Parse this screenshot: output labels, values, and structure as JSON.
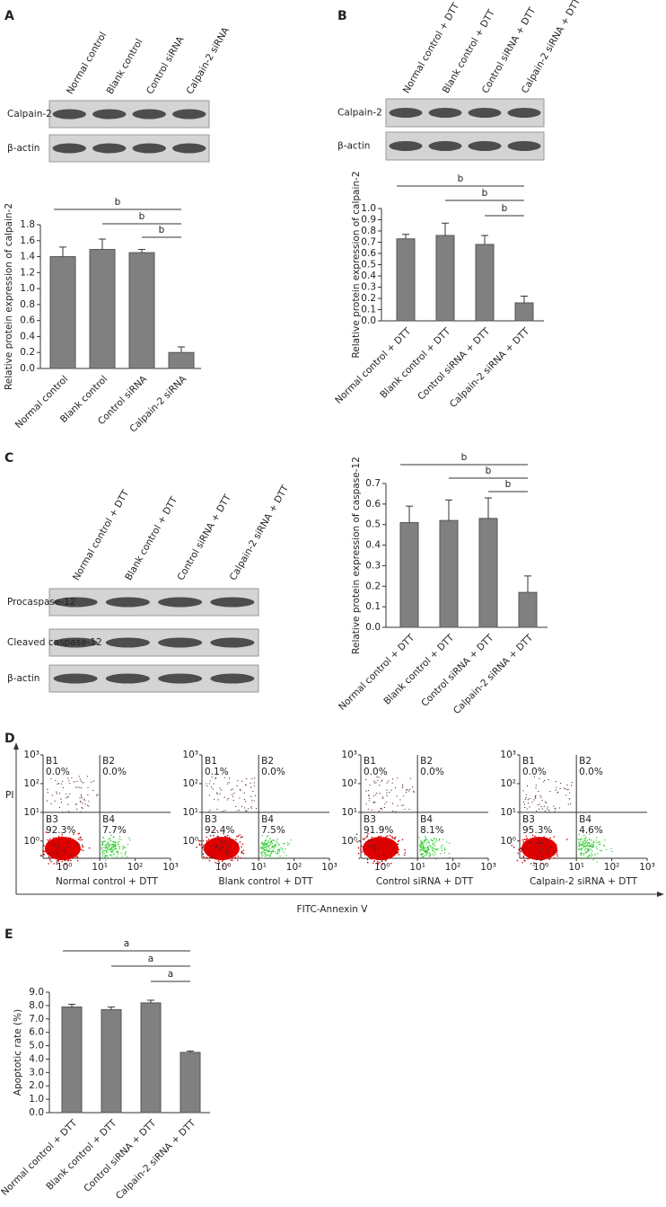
{
  "chart_data": [
    {
      "type": "bar",
      "panel": "A",
      "ylabel": "Relative protein expression of calpain-2",
      "categories": [
        "Normal control",
        "Blank control",
        "Control siRNA",
        "Calpain-2 siRNA"
      ],
      "values": [
        1.4,
        1.49,
        1.45,
        0.2
      ],
      "errors": [
        0.12,
        0.13,
        0.04,
        0.07
      ],
      "color": "#808080",
      "ylim": [
        0,
        1.8
      ],
      "yticks": [
        {
          "value": 0,
          "label": "0.0"
        },
        0.2,
        0.4,
        0.6,
        0.8,
        {
          "value": 1,
          "label": "1.0"
        },
        1.2,
        1.4,
        1.6,
        1.8
      ],
      "significance": [
        {
          "label": "b",
          "from": 0,
          "to": 3
        },
        {
          "label": "b",
          "from": 1,
          "to": 3
        },
        {
          "label": "b",
          "from": 2,
          "to": 3
        }
      ],
      "blot": {
        "lanes": [
          "Normal control",
          "Blank control",
          "Control siRNA",
          "Calpain-2 siRNA"
        ],
        "rows": [
          "Calpain-2",
          "β-actin"
        ]
      }
    },
    {
      "type": "bar",
      "panel": "B",
      "ylabel": "Relative protein expression of calpain-2",
      "categories": [
        "Normal control + DTT",
        "Blank control + DTT",
        "Control siRNA + DTT",
        "Calpain-2 siRNA + DTT"
      ],
      "values": [
        0.73,
        0.76,
        0.68,
        0.16
      ],
      "errors": [
        0.04,
        0.11,
        0.08,
        0.06
      ],
      "color": "#808080",
      "ylim": [
        0,
        1.0
      ],
      "yticks": [
        {
          "value": 0,
          "label": "0.0"
        },
        0.1,
        0.2,
        0.3,
        0.4,
        0.5,
        0.6,
        0.7,
        0.8,
        0.9,
        {
          "value": 1,
          "label": "1.0"
        }
      ],
      "significance": [
        {
          "label": "b",
          "from": 0,
          "to": 3
        },
        {
          "label": "b",
          "from": 1,
          "to": 3
        },
        {
          "label": "b",
          "from": 2,
          "to": 3
        }
      ],
      "blot": {
        "lanes": [
          "Normal control + DTT",
          "Blank control + DTT",
          "Control siRNA + DTT",
          "Calpain-2 siRNA + DTT"
        ],
        "rows": [
          "Calpain-2",
          "β-actin"
        ]
      }
    },
    {
      "type": "bar",
      "panel": "C",
      "ylabel": "Relative protein expression of caspase-12",
      "categories": [
        "Normal control + DTT",
        "Blank control + DTT",
        "Control siRNA + DTT",
        "Calpain-2 siRNA + DTT"
      ],
      "values": [
        0.51,
        0.52,
        0.53,
        0.17
      ],
      "errors": [
        0.08,
        0.1,
        0.1,
        0.08
      ],
      "color": "#808080",
      "ylim": [
        0,
        0.7
      ],
      "yticks": [
        {
          "value": 0,
          "label": "0.0"
        },
        0.1,
        0.2,
        0.3,
        0.4,
        0.5,
        0.6,
        0.7
      ],
      "significance": [
        {
          "label": "b",
          "from": 0,
          "to": 3
        },
        {
          "label": "b",
          "from": 1,
          "to": 3
        },
        {
          "label": "b",
          "from": 2,
          "to": 3
        }
      ],
      "blot": {
        "lanes": [
          "Normal control + DTT",
          "Blank control + DTT",
          "Control siRNA + DTT",
          "Calpain-2 siRNA + DTT"
        ],
        "rows": [
          "Procaspase-12",
          "Cleaved caspase-12",
          "β-actin"
        ]
      }
    },
    {
      "type": "flow",
      "panel": "D",
      "xlabel": "FITC-Annexin Ⅴ",
      "ylabel": "PI",
      "log": true,
      "xlim": [
        0.25,
        1000
      ],
      "ylim": [
        0.25,
        1000
      ],
      "xticks": [
        {
          "value": 1,
          "label": "10⁰"
        },
        {
          "value": 10,
          "label": "10¹"
        },
        {
          "value": 100,
          "label": "10²"
        },
        {
          "value": 1000,
          "label": "10³"
        }
      ],
      "yticks": [
        {
          "value": 1,
          "label": "10⁰"
        },
        {
          "value": 10,
          "label": "10¹"
        },
        {
          "value": 100,
          "label": "10²"
        },
        {
          "value": 1000,
          "label": "10³"
        }
      ],
      "quadrants": [
        "B1",
        "B2",
        "B3",
        "B4"
      ],
      "colors": [
        "#e00000",
        "#33cc33",
        "#552222"
      ],
      "series": [
        {
          "name": "Normal control + DTT",
          "values": [
            0.0,
            0.0,
            92.3,
            7.7
          ],
          "value_labels": [
            "0.0%",
            "0.0%",
            "92.3%",
            "7.7%"
          ]
        },
        {
          "name": "Blank control + DTT",
          "values": [
            0.1,
            0.0,
            92.4,
            7.5
          ],
          "value_labels": [
            "0.1%",
            "0.0%",
            "92.4%",
            "7.5%"
          ]
        },
        {
          "name": "Control siRNA + DTT",
          "values": [
            0.0,
            0.0,
            91.9,
            8.1
          ],
          "value_labels": [
            "0.0%",
            "0.0%",
            "91.9%",
            "8.1%"
          ]
        },
        {
          "name": "Calpain-2 siRNA + DTT",
          "values": [
            0.0,
            0.0,
            95.3,
            4.6
          ],
          "value_labels": [
            "0.0%",
            "0.0%",
            "95.3%",
            "4.6%"
          ]
        }
      ]
    },
    {
      "type": "bar",
      "panel": "E",
      "ylabel": "Apoptotic rate (%)",
      "categories": [
        "Normal control + DTT",
        "Blank control + DTT",
        "Control siRNA + DTT",
        "Calpain-2 siRNA + DTT"
      ],
      "values": [
        7.9,
        7.7,
        8.2,
        4.5
      ],
      "errors": [
        0.2,
        0.2,
        0.2,
        0.1
      ],
      "color": "#808080",
      "ylim": [
        0,
        9
      ],
      "yticks": [
        {
          "value": 0,
          "label": "0.0"
        },
        {
          "value": 1,
          "label": "1.0"
        },
        {
          "value": 2,
          "label": "2.0"
        },
        {
          "value": 3,
          "label": "3.0"
        },
        {
          "value": 4,
          "label": "4.0"
        },
        {
          "value": 5,
          "label": "5.0"
        },
        {
          "value": 6,
          "label": "6.0"
        },
        {
          "value": 7,
          "label": "7.0"
        },
        {
          "value": 8,
          "label": "8.0"
        },
        {
          "value": 9,
          "label": "9.0"
        }
      ],
      "significance": [
        {
          "label": "a",
          "from": 0,
          "to": 3
        },
        {
          "label": "a",
          "from": 1,
          "to": 3
        },
        {
          "label": "a",
          "from": 2,
          "to": 3
        }
      ]
    }
  ]
}
